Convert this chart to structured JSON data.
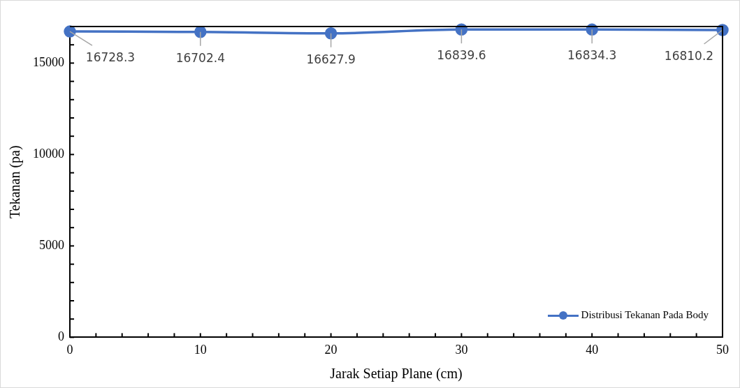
{
  "chart_data": {
    "type": "line",
    "xlabel": "Jarak Setiap Plane (cm)",
    "ylabel": "Tekanan (pa)",
    "x": [
      0,
      10,
      20,
      30,
      40,
      50
    ],
    "series": [
      {
        "name": "Distribusi Tekanan Pada Body",
        "color": "#4472c4",
        "values": [
          16728.3,
          16702.4,
          16627.9,
          16839.6,
          16834.3,
          16810.2
        ]
      }
    ],
    "xlim": [
      0,
      50
    ],
    "xticks": [
      0,
      {
        "value": 2,
        "label": null
      },
      {
        "value": 4,
        "label": null
      },
      {
        "value": 6,
        "label": null
      },
      {
        "value": 8,
        "label": null
      },
      10,
      {
        "value": 12,
        "label": null
      },
      {
        "value": 14,
        "label": null
      },
      {
        "value": 16,
        "label": null
      },
      {
        "value": 18,
        "label": null
      },
      20,
      {
        "value": 22,
        "label": null
      },
      {
        "value": 24,
        "label": null
      },
      {
        "value": 26,
        "label": null
      },
      {
        "value": 28,
        "label": null
      },
      30,
      {
        "value": 32,
        "label": null
      },
      {
        "value": 34,
        "label": null
      },
      {
        "value": 36,
        "label": null
      },
      {
        "value": 38,
        "label": null
      },
      40,
      {
        "value": 42,
        "label": null
      },
      {
        "value": 44,
        "label": null
      },
      {
        "value": 46,
        "label": null
      },
      {
        "value": 48,
        "label": null
      },
      50
    ],
    "ylim": [
      0,
      17000
    ],
    "yticks": [
      0,
      {
        "value": 1000,
        "label": null
      },
      {
        "value": 2000,
        "label": null
      },
      {
        "value": 3000,
        "label": null
      },
      {
        "value": 4000,
        "label": null
      },
      5000,
      {
        "value": 6000,
        "label": null
      },
      {
        "value": 7000,
        "label": null
      },
      {
        "value": 8000,
        "label": null
      },
      {
        "value": 9000,
        "label": null
      },
      10000,
      {
        "value": 11000,
        "label": null
      },
      {
        "value": 12000,
        "label": null
      },
      {
        "value": 13000,
        "label": null
      },
      {
        "value": 14000,
        "label": null
      },
      15000,
      {
        "value": 16000,
        "label": null
      }
    ],
    "grid": false,
    "legend": "bottom right",
    "marker": "circle",
    "line_style": "solid",
    "data_labels": true
  }
}
